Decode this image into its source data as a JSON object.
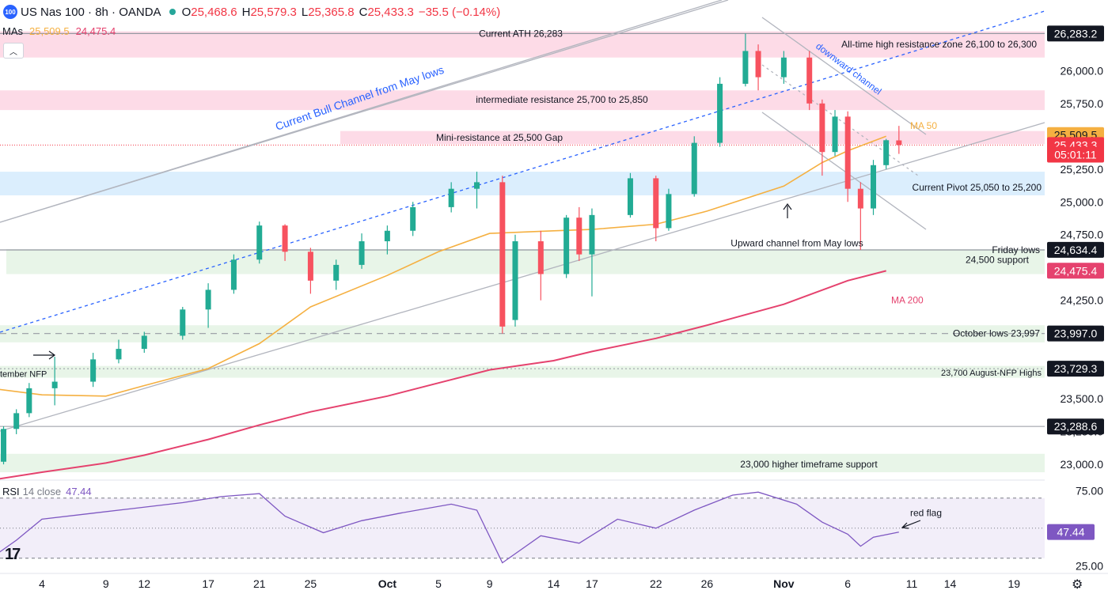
{
  "header": {
    "logo_text": "100",
    "symbol": "US Nas 100 · 8h · OANDA",
    "open_label": "O",
    "open": "25,468.6",
    "high_label": "H",
    "high": "25,579.3",
    "low_label": "L",
    "low": "25,365.8",
    "close_label": "C",
    "close": "25,433.3",
    "change": "−35.5 (−0.14%)"
  },
  "mas": {
    "label": "MAs",
    "ma50": "25,509.5",
    "ma200": "24,475.4"
  },
  "rsi": {
    "label": "RSI",
    "params": "14 close",
    "value": "47.44"
  },
  "colors": {
    "up": "#22ab94",
    "down": "#f7525f",
    "ma50": "#f5b041",
    "ma200": "#e5426e",
    "rsi": "#7e57c2",
    "resistance": "#f8bbd0",
    "support": "#c8e6c9",
    "pivot": "#bbdefb"
  },
  "chart_data": [
    {
      "type": "candlestick",
      "title": "US Nas 100 · 8h · OANDA",
      "ylim": [
        22880,
        26430
      ],
      "y_ticks": [
        "23,000.0",
        "23,250.0",
        "23,500.0",
        "23,750.0",
        "24,000.0",
        "24,250.0",
        "24,500.0",
        "24,750.0",
        "25,000.0",
        "25,250.0",
        "25,500.0",
        "25,750.0",
        "26,000.0"
      ],
      "x_ticks": [
        "4",
        "9",
        "12",
        "17",
        "21",
        "25",
        "Oct",
        "5",
        "9",
        "14",
        "17",
        "22",
        "26",
        "Nov",
        "6",
        "11",
        "14",
        "19"
      ],
      "price_labels": [
        {
          "text": "26,283.2",
          "value": 26283.2,
          "color": "#131722"
        },
        {
          "text": "25,509.5",
          "value": 25509.5,
          "color": "#f5b041"
        },
        {
          "text": "25,433.3",
          "value": 25433.3,
          "color": "#f23645"
        },
        {
          "text": "05:01:11",
          "value": 25360,
          "color": "#f23645"
        },
        {
          "text": "24,634.4",
          "value": 24634.4,
          "color": "#131722"
        },
        {
          "text": "24,475.4",
          "value": 24475.4,
          "color": "#e5426e"
        },
        {
          "text": "23,997.0",
          "value": 23997.0,
          "color": "#131722"
        },
        {
          "text": "23,729.3",
          "value": 23729.3,
          "color": "#131722"
        },
        {
          "text": "23,288.6",
          "value": 23288.6,
          "color": "#131722"
        }
      ],
      "zones": [
        {
          "label": "All-time high resistance zone 26,100 to 26,300",
          "from": 26100,
          "to": 26300,
          "kind": "resistance"
        },
        {
          "label": "intermediate resistance 25,700 to 25,850",
          "from": 25700,
          "to": 25850,
          "kind": "resistance"
        },
        {
          "label": "Mini-resistance at 25,500 Gap",
          "from": 25440,
          "to": 25540,
          "kind": "resistance"
        },
        {
          "label": "Current Pivot  25,050 to 25,200",
          "from": 25050,
          "to": 25230,
          "kind": "pivot"
        },
        {
          "label": "24,500 support",
          "from": 24450,
          "to": 24640,
          "kind": "support"
        },
        {
          "label": "October lows 23,997",
          "from": 23930,
          "to": 24060,
          "kind": "support"
        },
        {
          "label": "23,700 August-NFP Highs",
          "from": 23660,
          "to": 23750,
          "kind": "support"
        },
        {
          "label": "23,000 higher timeframe support",
          "from": 22940,
          "to": 23080,
          "kind": "support"
        }
      ],
      "levels": [
        {
          "label": "Current ATH 26,283",
          "value": 26283
        },
        {
          "label": "Friday lows",
          "value": 24634
        },
        {
          "label": "",
          "value": 23289
        }
      ],
      "annotations": [
        "Current Bull Channel from May lows",
        "downward channel",
        "Upward channel from May lows",
        "MA 50",
        "MA 200",
        "tember NFP"
      ],
      "ma50": [
        {
          "date": "Aug 31",
          "value": 23580
        },
        {
          "date": "Sep 4",
          "value": 23530
        },
        {
          "date": "Sep 9",
          "value": 23520
        },
        {
          "date": "Sep 12",
          "value": 23600
        },
        {
          "date": "Sep 17",
          "value": 23730
        },
        {
          "date": "Sep 21",
          "value": 23920
        },
        {
          "date": "Sep 25",
          "value": 24200
        },
        {
          "date": "Oct 1",
          "value": 24440
        },
        {
          "date": "Oct 5",
          "value": 24620
        },
        {
          "date": "Oct 9",
          "value": 24760
        },
        {
          "date": "Oct 14",
          "value": 24780
        },
        {
          "date": "Oct 17",
          "value": 24790
        },
        {
          "date": "Oct 22",
          "value": 24830
        },
        {
          "date": "Oct 26",
          "value": 24930
        },
        {
          "date": "Nov 1",
          "value": 25120
        },
        {
          "date": "Nov 4",
          "value": 25300
        },
        {
          "date": "Nov 6",
          "value": 25390
        },
        {
          "date": "Nov 9",
          "value": 25500
        }
      ],
      "ma200": [
        {
          "date": "Aug 31",
          "value": 22880
        },
        {
          "date": "Sep 4",
          "value": 22940
        },
        {
          "date": "Sep 9",
          "value": 23010
        },
        {
          "date": "Sep 12",
          "value": 23070
        },
        {
          "date": "Sep 17",
          "value": 23190
        },
        {
          "date": "Sep 21",
          "value": 23300
        },
        {
          "date": "Sep 25",
          "value": 23400
        },
        {
          "date": "Oct 1",
          "value": 23520
        },
        {
          "date": "Oct 5",
          "value": 23620
        },
        {
          "date": "Oct 9",
          "value": 23720
        },
        {
          "date": "Oct 14",
          "value": 23790
        },
        {
          "date": "Oct 17",
          "value": 23860
        },
        {
          "date": "Oct 22",
          "value": 23960
        },
        {
          "date": "Oct 26",
          "value": 24060
        },
        {
          "date": "Nov 1",
          "value": 24220
        },
        {
          "date": "Nov 6",
          "value": 24400
        },
        {
          "date": "Nov 9",
          "value": 24475
        }
      ],
      "candles": [
        {
          "date": "Aug 31",
          "o": 23250,
          "h": 23320,
          "l": 22950,
          "c": 23000
        },
        {
          "date": "Sep 1",
          "o": 23020,
          "h": 23290,
          "l": 23000,
          "c": 23270
        },
        {
          "date": "Sep 2",
          "o": 23270,
          "h": 23420,
          "l": 23230,
          "c": 23390
        },
        {
          "date": "Sep 3",
          "o": 23390,
          "h": 23620,
          "l": 23360,
          "c": 23580
        },
        {
          "date": "Sep 5",
          "o": 23580,
          "h": 23820,
          "l": 23450,
          "c": 23630
        },
        {
          "date": "Sep 8",
          "o": 23630,
          "h": 23850,
          "l": 23590,
          "c": 23800
        },
        {
          "date": "Sep 10",
          "o": 23800,
          "h": 23950,
          "l": 23770,
          "c": 23880
        },
        {
          "date": "Sep 12",
          "o": 23880,
          "h": 24010,
          "l": 23850,
          "c": 23980
        },
        {
          "date": "Sep 15",
          "o": 23980,
          "h": 24200,
          "l": 23950,
          "c": 24180
        },
        {
          "date": "Sep 17",
          "o": 24180,
          "h": 24380,
          "l": 24040,
          "c": 24330
        },
        {
          "date": "Sep 19",
          "o": 24330,
          "h": 24600,
          "l": 24300,
          "c": 24560
        },
        {
          "date": "Sep 21",
          "o": 24560,
          "h": 24850,
          "l": 24530,
          "c": 24820
        },
        {
          "date": "Sep 23",
          "o": 24820,
          "h": 24830,
          "l": 24550,
          "c": 24620
        },
        {
          "date": "Sep 25",
          "o": 24620,
          "h": 24650,
          "l": 24300,
          "c": 24400
        },
        {
          "date": "Sep 27",
          "o": 24400,
          "h": 24560,
          "l": 24330,
          "c": 24520
        },
        {
          "date": "Sep 29",
          "o": 24520,
          "h": 24760,
          "l": 24490,
          "c": 24700
        },
        {
          "date": "Oct 1",
          "o": 24700,
          "h": 24820,
          "l": 24600,
          "c": 24780
        },
        {
          "date": "Oct 3",
          "o": 24780,
          "h": 25000,
          "l": 24740,
          "c": 24960
        },
        {
          "date": "Oct 6",
          "o": 24960,
          "h": 25150,
          "l": 24920,
          "c": 25100
        },
        {
          "date": "Oct 8",
          "o": 25100,
          "h": 25230,
          "l": 24950,
          "c": 25150
        },
        {
          "date": "Oct 10",
          "o": 25150,
          "h": 25200,
          "l": 23997,
          "c": 24050
        },
        {
          "date": "Oct 11",
          "o": 24100,
          "h": 24750,
          "l": 24050,
          "c": 24700
        },
        {
          "date": "Oct 13",
          "o": 24700,
          "h": 24780,
          "l": 24250,
          "c": 24450
        },
        {
          "date": "Oct 15",
          "o": 24450,
          "h": 24900,
          "l": 24420,
          "c": 24880
        },
        {
          "date": "Oct 16",
          "o": 24880,
          "h": 24960,
          "l": 24550,
          "c": 24600
        },
        {
          "date": "Oct 17",
          "o": 24600,
          "h": 24950,
          "l": 24280,
          "c": 24900
        },
        {
          "date": "Oct 20",
          "o": 24900,
          "h": 25220,
          "l": 24880,
          "c": 25180
        },
        {
          "date": "Oct 22",
          "o": 25180,
          "h": 25200,
          "l": 24700,
          "c": 24800
        },
        {
          "date": "Oct 23",
          "o": 24800,
          "h": 25100,
          "l": 24780,
          "c": 25060
        },
        {
          "date": "Oct 25",
          "o": 25060,
          "h": 25500,
          "l": 25040,
          "c": 25450
        },
        {
          "date": "Oct 27",
          "o": 25450,
          "h": 25950,
          "l": 25420,
          "c": 25900
        },
        {
          "date": "Oct 29",
          "o": 25900,
          "h": 26283,
          "l": 25880,
          "c": 26150
        },
        {
          "date": "Oct 30",
          "o": 26150,
          "h": 26200,
          "l": 25850,
          "c": 25950
        },
        {
          "date": "Nov 1",
          "o": 25950,
          "h": 26150,
          "l": 25900,
          "c": 26100
        },
        {
          "date": "Nov 3",
          "o": 26100,
          "h": 26150,
          "l": 25700,
          "c": 25750
        },
        {
          "date": "Nov 4",
          "o": 25750,
          "h": 25780,
          "l": 25200,
          "c": 25380
        },
        {
          "date": "Nov 5",
          "o": 25380,
          "h": 25700,
          "l": 25350,
          "c": 25650
        },
        {
          "date": "Nov 6",
          "o": 25650,
          "h": 25690,
          "l": 25000,
          "c": 25100
        },
        {
          "date": "Nov 7",
          "o": 25100,
          "h": 25150,
          "l": 24634,
          "c": 24950
        },
        {
          "date": "Nov 8",
          "o": 24950,
          "h": 25320,
          "l": 24900,
          "c": 25280
        },
        {
          "date": "Nov 9",
          "o": 25280,
          "h": 25480,
          "l": 25250,
          "c": 25470
        },
        {
          "date": "Nov 10",
          "o": 25468.6,
          "h": 25579.3,
          "l": 25365.8,
          "c": 25433.3
        }
      ]
    },
    {
      "type": "line",
      "title": "RSI 14 close",
      "ylim": [
        22,
        82
      ],
      "y_ticks": [
        "75.00",
        "25.00"
      ],
      "levels": [
        70,
        50,
        30
      ],
      "annotations": [
        "red flag"
      ],
      "x": [
        "Aug 31",
        "Sep 2",
        "Sep 4",
        "Sep 8",
        "Sep 11",
        "Sep 15",
        "Sep 18",
        "Sep 21",
        "Sep 23",
        "Sep 26",
        "Sep 29",
        "Oct 2",
        "Oct 6",
        "Oct 8",
        "Oct 10",
        "Oct 13",
        "Oct 16",
        "Oct 19",
        "Oct 22",
        "Oct 25",
        "Oct 28",
        "Oct 30",
        "Nov 2",
        "Nov 4",
        "Nov 6",
        "Nov 7",
        "Nov 8",
        "Nov 10"
      ],
      "values": [
        30,
        42,
        56,
        60,
        63,
        67,
        71,
        73,
        58,
        47,
        55,
        60,
        66,
        62,
        27,
        45,
        40,
        56,
        50,
        62,
        72,
        74,
        66,
        54,
        46,
        38,
        44,
        47.44
      ]
    }
  ]
}
